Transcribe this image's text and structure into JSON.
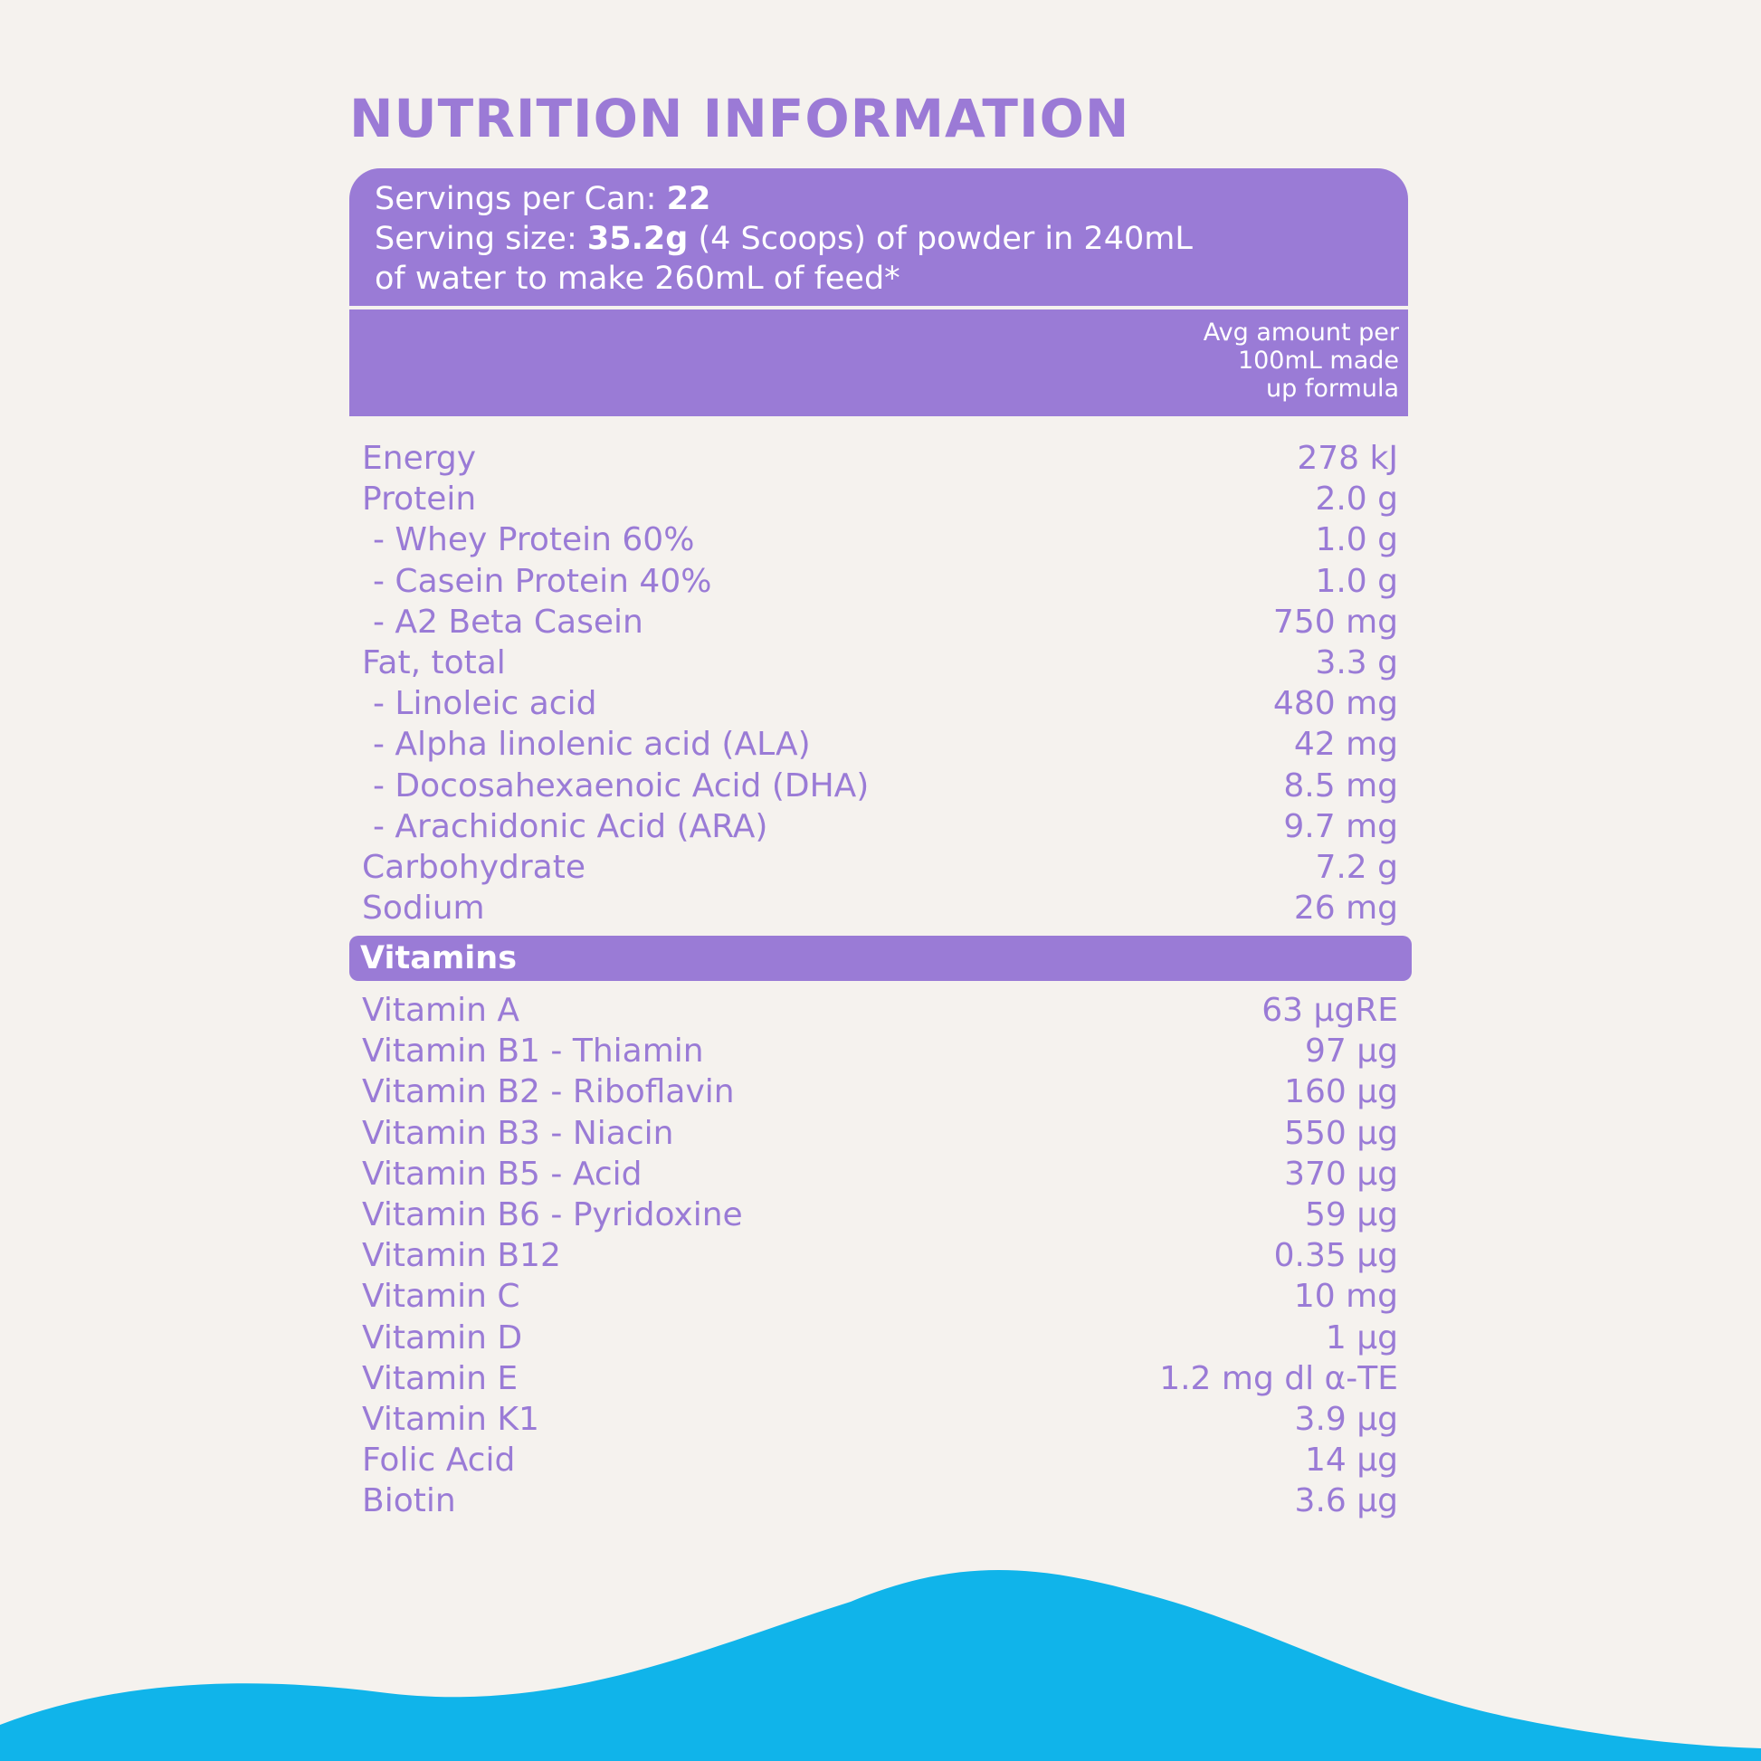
{
  "title": "NUTRITION INFORMATION",
  "serving": {
    "servings_label": "Servings per Can: ",
    "servings_value": "22",
    "size_label": "Serving size: ",
    "size_value": "35.2g",
    "size_rest": " (4 Scoops) of powder in 240mL",
    "size_line2": "of water to make 260mL of feed*"
  },
  "column_header": {
    "line1": "Avg amount per",
    "line2": "100mL made",
    "line3": "up formula"
  },
  "nutrients": [
    {
      "label": "Energy",
      "value": "278 kJ",
      "sub": false
    },
    {
      "label": "Protein",
      "value": "2.0 g",
      "sub": false
    },
    {
      "label": "- Whey Protein 60%",
      "value": "1.0 g",
      "sub": true
    },
    {
      "label": "- Casein Protein 40%",
      "value": "1.0 g",
      "sub": true
    },
    {
      "label": "- A2 Beta Casein",
      "value": "750 mg",
      "sub": true
    },
    {
      "label": "Fat, total",
      "value": "3.3 g",
      "sub": false
    },
    {
      "label": "- Linoleic acid",
      "value": "480 mg",
      "sub": true
    },
    {
      "label": "- Alpha linolenic acid (ALA)",
      "value": "42 mg",
      "sub": true
    },
    {
      "label": "- Docosahexaenoic Acid (DHA)",
      "value": "8.5 mg",
      "sub": true
    },
    {
      "label": "- Arachidonic Acid (ARA)",
      "value": "9.7 mg",
      "sub": true
    },
    {
      "label": "Carbohydrate",
      "value": "7.2 g",
      "sub": false
    },
    {
      "label": "Sodium",
      "value": "26 mg",
      "sub": false
    }
  ],
  "vitamins_header": "Vitamins",
  "vitamins": [
    {
      "label": "Vitamin A",
      "value": "63 µgRE"
    },
    {
      "label": "Vitamin B1 - Thiamin",
      "value": "97 µg"
    },
    {
      "label": "Vitamin B2 - Riboflavin",
      "value": "160 µg"
    },
    {
      "label": "Vitamin B3 - Niacin",
      "value": "550 µg"
    },
    {
      "label": "Vitamin B5 - Acid",
      "value": "370 µg"
    },
    {
      "label": "Vitamin B6 - Pyridoxine",
      "value": "59 µg"
    },
    {
      "label": "Vitamin B12",
      "value": "0.35 µg"
    },
    {
      "label": "Vitamin C",
      "value": "10 mg"
    },
    {
      "label": "Vitamin D",
      "value": "1 µg"
    },
    {
      "label": "Vitamin E",
      "value": "1.2 mg dl α-TE"
    },
    {
      "label": "Vitamin K1",
      "value": "3.9 µg"
    },
    {
      "label": "Folic Acid",
      "value": "14 µg"
    },
    {
      "label": "Biotin",
      "value": "3.6 µg"
    }
  ],
  "colors": {
    "accent": "#9a7bd6",
    "background": "#f5f2ee",
    "wave": "#10b4ea"
  }
}
